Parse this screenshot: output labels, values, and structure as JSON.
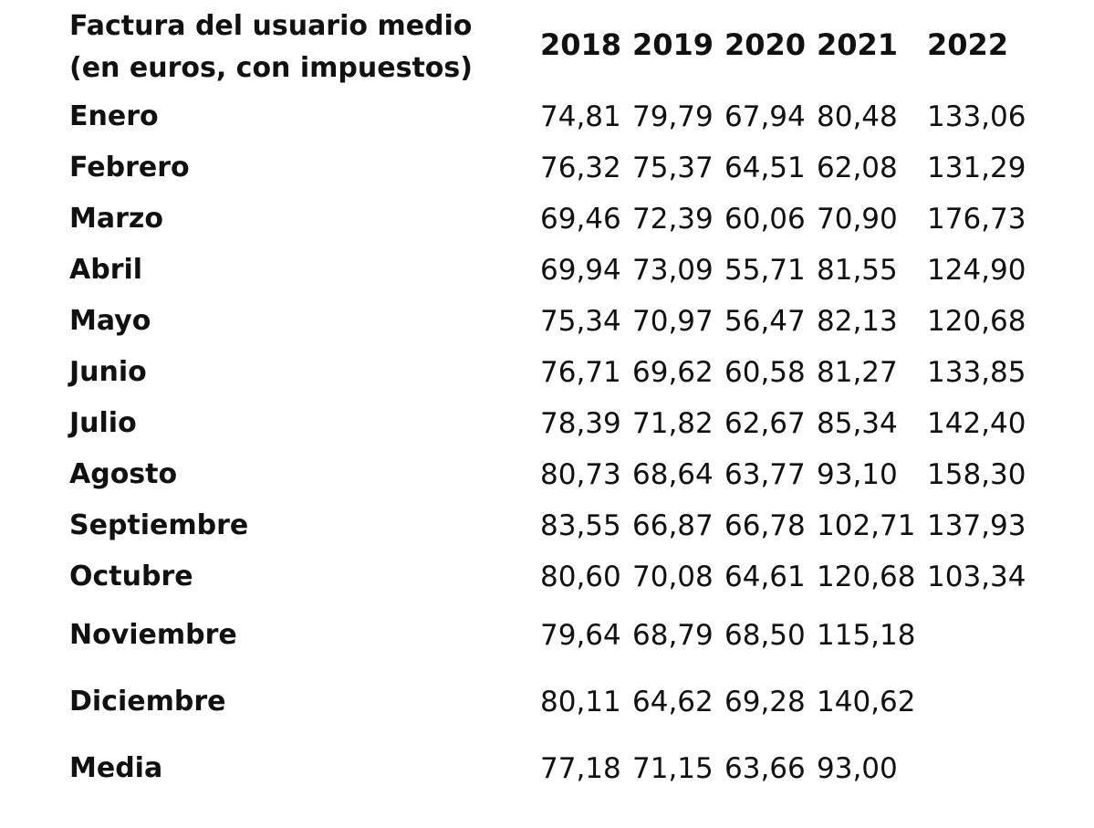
{
  "chart_data": {
    "type": "table",
    "title_lines": [
      "Factura del usuario medio",
      "(en euros, con impuestos)"
    ],
    "columns": [
      "2018",
      "2019",
      "2020",
      "2021",
      "2022"
    ],
    "rows": [
      {
        "label": "Enero",
        "values": [
          "74,81",
          "79,79",
          "67,94",
          "80,48",
          "133,06"
        ]
      },
      {
        "label": "Febrero",
        "values": [
          "76,32",
          "75,37",
          "64,51",
          "62,08",
          "131,29"
        ]
      },
      {
        "label": "Marzo",
        "values": [
          "69,46",
          "72,39",
          "60,06",
          "70,90",
          "176,73"
        ]
      },
      {
        "label": "Abril",
        "values": [
          "69,94",
          "73,09",
          "55,71",
          "81,55",
          "124,90"
        ]
      },
      {
        "label": "Mayo",
        "values": [
          "75,34",
          "70,97",
          "56,47",
          "82,13",
          "120,68"
        ]
      },
      {
        "label": "Junio",
        "values": [
          "76,71",
          "69,62",
          "60,58",
          "81,27",
          "133,85"
        ]
      },
      {
        "label": "Julio",
        "values": [
          "78,39",
          "71,82",
          "62,67",
          "85,34",
          "142,40"
        ]
      },
      {
        "label": "Agosto",
        "values": [
          "80,73",
          "68,64",
          "63,77",
          "93,10",
          "158,30"
        ]
      },
      {
        "label": "Septiembre",
        "values": [
          "83,55",
          "66,87",
          "66,78",
          "102,71",
          "137,93"
        ]
      },
      {
        "label": "Octubre",
        "values": [
          "80,60",
          "70,08",
          "64,61",
          "120,68",
          "103,34"
        ]
      },
      {
        "label": "Noviembre",
        "values": [
          "79,64",
          "68,79",
          "68,50",
          "115,18",
          ""
        ]
      },
      {
        "label": "Diciembre",
        "values": [
          "80,11",
          "64,62",
          "69,28",
          "140,62",
          ""
        ]
      },
      {
        "label": "Media",
        "values": [
          "77,18",
          "71,15",
          "63,66",
          "93,00",
          ""
        ]
      }
    ]
  }
}
